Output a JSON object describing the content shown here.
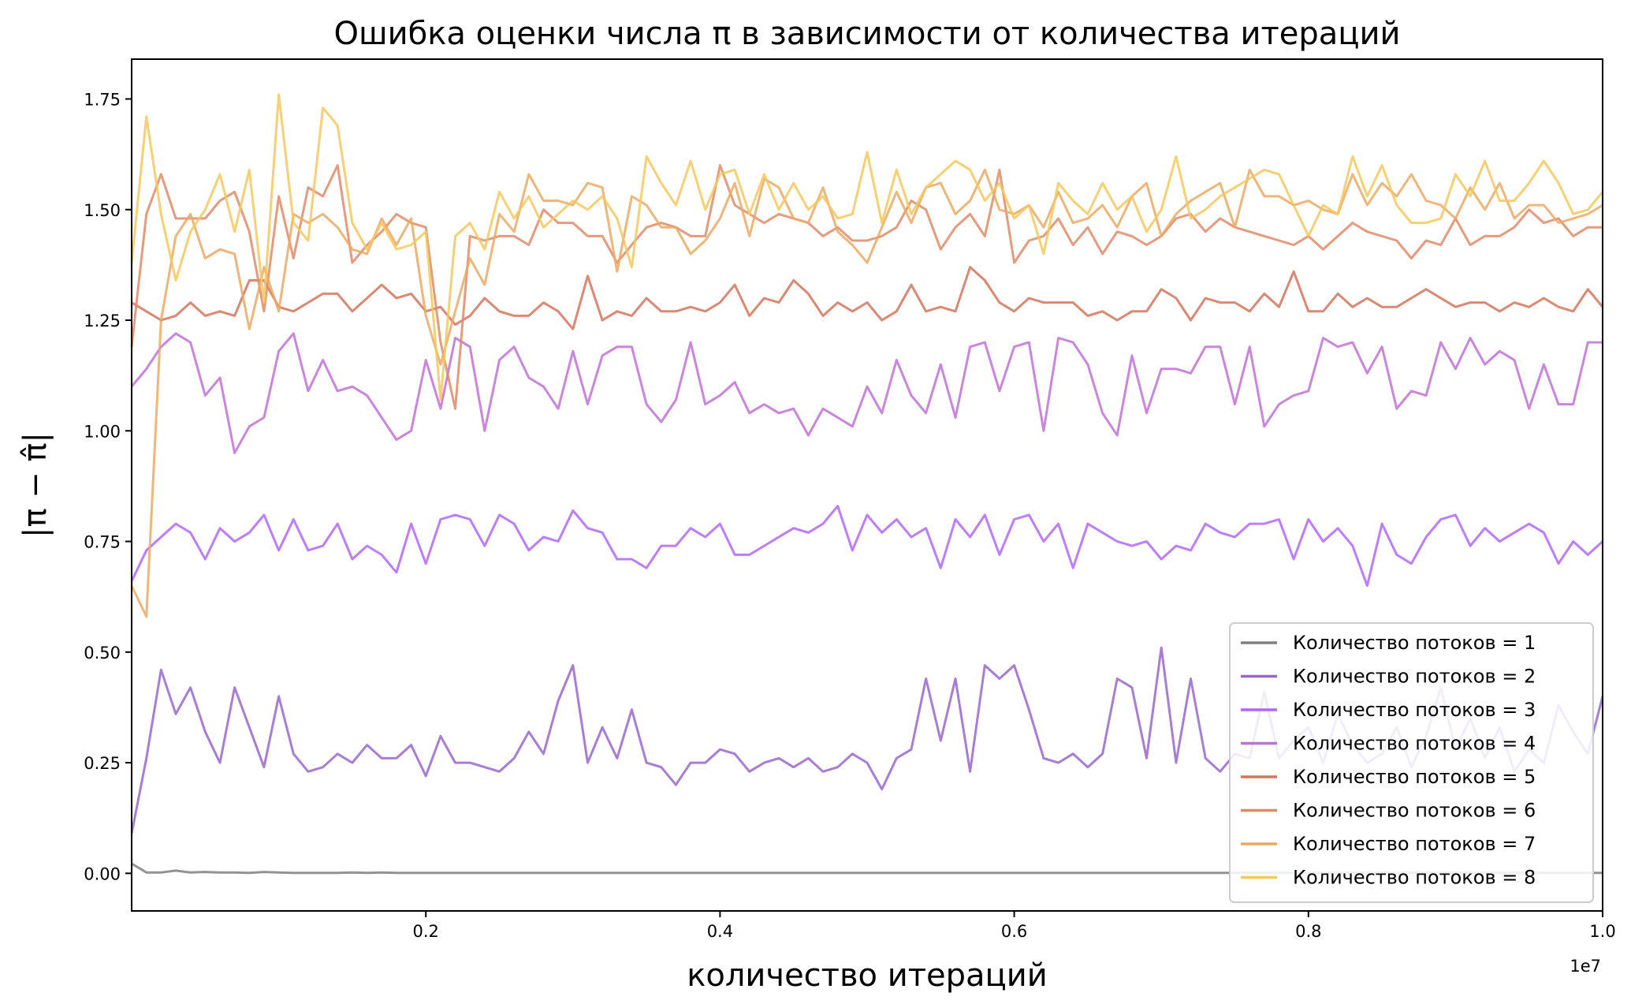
{
  "chart_data": {
    "type": "line",
    "title": "Ошибка оценки числа π в зависимости от количества итераций",
    "xlabel": "количество итераций",
    "ylabel": "|π − π̂|",
    "x_offset_label": "1e7",
    "x_tick_labels": [
      "0.2",
      "0.4",
      "0.6",
      "0.8",
      "1.0"
    ],
    "x_ticks": [
      0.2,
      0.4,
      0.6,
      0.8,
      1.0
    ],
    "y_tick_labels": [
      "0.00",
      "0.25",
      "0.50",
      "0.75",
      "1.00",
      "1.25",
      "1.50",
      "1.75"
    ],
    "y_ticks": [
      0,
      0.25,
      0.5,
      0.75,
      1.0,
      1.25,
      1.5,
      1.75
    ],
    "xlim": [
      0,
      1.0
    ],
    "ylim": [
      -0.085,
      1.84
    ],
    "grid": false,
    "legend_placement": "lower-right",
    "x": [
      0.0,
      0.01,
      0.02,
      0.03,
      0.04,
      0.05,
      0.06,
      0.07,
      0.08,
      0.09,
      0.1,
      0.11,
      0.12,
      0.13,
      0.14,
      0.15,
      0.16,
      0.17,
      0.18,
      0.19,
      0.2,
      0.21,
      0.22,
      0.23,
      0.24,
      0.25,
      0.26,
      0.27,
      0.28,
      0.29,
      0.3,
      0.31,
      0.32,
      0.33,
      0.34,
      0.35,
      0.36,
      0.37,
      0.38,
      0.39,
      0.4,
      0.41,
      0.42,
      0.43,
      0.44,
      0.45,
      0.46,
      0.47,
      0.48,
      0.49,
      0.5,
      0.51,
      0.52,
      0.53,
      0.54,
      0.55,
      0.56,
      0.57,
      0.58,
      0.59,
      0.6,
      0.61,
      0.62,
      0.63,
      0.64,
      0.65,
      0.66,
      0.67,
      0.68,
      0.69,
      0.7,
      0.71,
      0.72,
      0.73,
      0.74,
      0.75,
      0.76,
      0.77,
      0.78,
      0.79,
      0.8,
      0.81,
      0.82,
      0.83,
      0.84,
      0.85,
      0.86,
      0.87,
      0.88,
      0.89,
      0.9,
      0.91,
      0.92,
      0.93,
      0.94,
      0.95,
      0.96,
      0.97,
      0.98,
      0.99,
      1.0
    ],
    "series": [
      {
        "name": "Количество потоков = 1",
        "color": "#808080",
        "values": [
          0.022,
          0.002,
          0.002,
          0.006,
          0.002,
          0.003,
          0.002,
          0.002,
          0.001,
          0.003,
          0.002,
          0.001,
          0.001,
          0.001,
          0.001,
          0.002,
          0.001,
          0.002,
          0.001,
          0.001,
          0.001,
          0.001,
          0.001,
          0.001,
          0.001,
          0.001,
          0.001,
          0.001,
          0.001,
          0.001,
          0.001,
          0.001,
          0.001,
          0.001,
          0.001,
          0.001,
          0.001,
          0.001,
          0.001,
          0.001,
          0.001,
          0.001,
          0.001,
          0.001,
          0.001,
          0.001,
          0.001,
          0.001,
          0.001,
          0.001,
          0.001,
          0.001,
          0.001,
          0.001,
          0.001,
          0.001,
          0.001,
          0.001,
          0.001,
          0.001,
          0.001,
          0.001,
          0.001,
          0.001,
          0.001,
          0.001,
          0.001,
          0.001,
          0.001,
          0.001,
          0.001,
          0.001,
          0.001,
          0.001,
          0.001,
          0.001,
          0.001,
          0.001,
          0.001,
          0.001,
          0.001,
          0.001,
          0.001,
          0.001,
          0.001,
          0.001,
          0.001,
          0.001,
          0.001,
          0.001,
          0.001,
          0.001,
          0.001,
          0.001,
          0.001,
          0.001,
          0.001,
          0.001,
          0.001,
          0.001,
          0.001
        ]
      },
      {
        "name": "Количество потоков = 2",
        "color": "#9966cc",
        "values": [
          0.09,
          0.26,
          0.46,
          0.36,
          0.42,
          0.32,
          0.25,
          0.42,
          0.33,
          0.24,
          0.4,
          0.27,
          0.23,
          0.24,
          0.27,
          0.25,
          0.29,
          0.26,
          0.26,
          0.29,
          0.22,
          0.31,
          0.25,
          0.25,
          0.24,
          0.23,
          0.26,
          0.32,
          0.27,
          0.39,
          0.47,
          0.25,
          0.33,
          0.26,
          0.37,
          0.25,
          0.24,
          0.2,
          0.25,
          0.25,
          0.28,
          0.27,
          0.23,
          0.25,
          0.26,
          0.24,
          0.26,
          0.23,
          0.24,
          0.27,
          0.25,
          0.19,
          0.26,
          0.28,
          0.44,
          0.3,
          0.44,
          0.23,
          0.47,
          0.44,
          0.47,
          0.37,
          0.26,
          0.25,
          0.27,
          0.24,
          0.27,
          0.44,
          0.42,
          0.26,
          0.51,
          0.25,
          0.44,
          0.26,
          0.23,
          0.27,
          0.26,
          0.41,
          0.26,
          0.3,
          0.33,
          0.25,
          0.36,
          0.29,
          0.25,
          0.27,
          0.33,
          0.24,
          0.31,
          0.42,
          0.28,
          0.35,
          0.26,
          0.33,
          0.23,
          0.28,
          0.25,
          0.38,
          0.32,
          0.27,
          0.4
        ]
      },
      {
        "name": "Количество потоков = 3",
        "color": "#b266ff",
        "values": [
          0.66,
          0.73,
          0.76,
          0.79,
          0.77,
          0.71,
          0.78,
          0.75,
          0.77,
          0.81,
          0.73,
          0.8,
          0.73,
          0.74,
          0.79,
          0.71,
          0.74,
          0.72,
          0.68,
          0.79,
          0.7,
          0.8,
          0.81,
          0.8,
          0.74,
          0.81,
          0.79,
          0.73,
          0.76,
          0.75,
          0.82,
          0.78,
          0.77,
          0.71,
          0.71,
          0.69,
          0.74,
          0.74,
          0.78,
          0.76,
          0.79,
          0.72,
          0.72,
          0.74,
          0.76,
          0.78,
          0.77,
          0.79,
          0.83,
          0.73,
          0.81,
          0.77,
          0.8,
          0.76,
          0.78,
          0.69,
          0.8,
          0.76,
          0.81,
          0.72,
          0.8,
          0.81,
          0.75,
          0.79,
          0.69,
          0.79,
          0.77,
          0.75,
          0.74,
          0.75,
          0.71,
          0.74,
          0.73,
          0.79,
          0.77,
          0.76,
          0.79,
          0.79,
          0.8,
          0.71,
          0.8,
          0.75,
          0.78,
          0.74,
          0.65,
          0.79,
          0.72,
          0.7,
          0.76,
          0.8,
          0.81,
          0.74,
          0.78,
          0.75,
          0.77,
          0.79,
          0.77,
          0.7,
          0.75,
          0.72,
          0.75
        ]
      },
      {
        "name": "Количество потоков = 4",
        "color": "#c071d6",
        "values": [
          1.1,
          1.14,
          1.19,
          1.22,
          1.2,
          1.08,
          1.12,
          0.95,
          1.01,
          1.03,
          1.18,
          1.22,
          1.09,
          1.16,
          1.09,
          1.1,
          1.08,
          1.03,
          0.98,
          1.0,
          1.16,
          1.05,
          1.21,
          1.19,
          1.0,
          1.16,
          1.19,
          1.12,
          1.1,
          1.05,
          1.18,
          1.06,
          1.17,
          1.19,
          1.19,
          1.06,
          1.02,
          1.07,
          1.2,
          1.06,
          1.08,
          1.11,
          1.04,
          1.06,
          1.04,
          1.05,
          0.99,
          1.05,
          1.03,
          1.01,
          1.1,
          1.04,
          1.16,
          1.08,
          1.04,
          1.15,
          1.03,
          1.19,
          1.2,
          1.09,
          1.19,
          1.2,
          1.0,
          1.21,
          1.2,
          1.15,
          1.04,
          0.99,
          1.17,
          1.04,
          1.14,
          1.14,
          1.13,
          1.19,
          1.19,
          1.06,
          1.19,
          1.01,
          1.06,
          1.08,
          1.09,
          1.21,
          1.19,
          1.2,
          1.13,
          1.19,
          1.05,
          1.09,
          1.08,
          1.2,
          1.14,
          1.21,
          1.15,
          1.18,
          1.16,
          1.05,
          1.15,
          1.06,
          1.06,
          1.2,
          1.2
        ]
      },
      {
        "name": "Количество потоков = 5",
        "color": "#d4745a",
        "values": [
          1.29,
          1.27,
          1.25,
          1.26,
          1.29,
          1.26,
          1.27,
          1.26,
          1.34,
          1.34,
          1.28,
          1.27,
          1.29,
          1.31,
          1.31,
          1.27,
          1.3,
          1.33,
          1.3,
          1.31,
          1.27,
          1.28,
          1.24,
          1.26,
          1.3,
          1.27,
          1.26,
          1.26,
          1.29,
          1.27,
          1.23,
          1.35,
          1.25,
          1.27,
          1.26,
          1.3,
          1.27,
          1.27,
          1.28,
          1.27,
          1.29,
          1.33,
          1.26,
          1.3,
          1.29,
          1.34,
          1.31,
          1.26,
          1.29,
          1.27,
          1.29,
          1.25,
          1.27,
          1.33,
          1.27,
          1.28,
          1.27,
          1.37,
          1.34,
          1.29,
          1.27,
          1.3,
          1.29,
          1.29,
          1.29,
          1.26,
          1.27,
          1.25,
          1.27,
          1.27,
          1.32,
          1.3,
          1.25,
          1.3,
          1.29,
          1.29,
          1.27,
          1.31,
          1.28,
          1.36,
          1.27,
          1.27,
          1.31,
          1.28,
          1.3,
          1.28,
          1.28,
          1.3,
          1.32,
          1.3,
          1.28,
          1.29,
          1.29,
          1.27,
          1.29,
          1.28,
          1.3,
          1.28,
          1.27,
          1.32,
          1.28
        ]
      },
      {
        "name": "Количество потоков = 6",
        "color": "#e08a66",
        "values": [
          1.19,
          1.49,
          1.58,
          1.48,
          1.48,
          1.48,
          1.52,
          1.54,
          1.45,
          1.27,
          1.53,
          1.39,
          1.55,
          1.53,
          1.6,
          1.38,
          1.42,
          1.45,
          1.49,
          1.47,
          1.46,
          1.2,
          1.05,
          1.44,
          1.43,
          1.44,
          1.44,
          1.42,
          1.5,
          1.47,
          1.47,
          1.44,
          1.44,
          1.38,
          1.42,
          1.46,
          1.47,
          1.46,
          1.44,
          1.44,
          1.6,
          1.51,
          1.49,
          1.47,
          1.49,
          1.48,
          1.47,
          1.44,
          1.46,
          1.43,
          1.43,
          1.44,
          1.46,
          1.52,
          1.5,
          1.41,
          1.46,
          1.49,
          1.44,
          1.59,
          1.38,
          1.43,
          1.44,
          1.48,
          1.42,
          1.46,
          1.4,
          1.45,
          1.44,
          1.42,
          1.44,
          1.48,
          1.49,
          1.45,
          1.48,
          1.46,
          1.45,
          1.44,
          1.43,
          1.42,
          1.44,
          1.41,
          1.44,
          1.47,
          1.45,
          1.44,
          1.43,
          1.39,
          1.43,
          1.42,
          1.48,
          1.42,
          1.44,
          1.44,
          1.46,
          1.5,
          1.47,
          1.48,
          1.44,
          1.46,
          1.46
        ]
      },
      {
        "name": "Количество потоков = 7",
        "color": "#eba963",
        "values": [
          0.65,
          0.58,
          1.25,
          1.44,
          1.49,
          1.39,
          1.41,
          1.4,
          1.23,
          1.37,
          1.27,
          1.49,
          1.47,
          1.49,
          1.46,
          1.41,
          1.4,
          1.48,
          1.42,
          1.48,
          1.26,
          1.15,
          1.27,
          1.39,
          1.33,
          1.49,
          1.45,
          1.58,
          1.52,
          1.52,
          1.51,
          1.56,
          1.55,
          1.36,
          1.53,
          1.51,
          1.46,
          1.46,
          1.4,
          1.43,
          1.48,
          1.56,
          1.44,
          1.57,
          1.55,
          1.48,
          1.47,
          1.55,
          1.45,
          1.42,
          1.38,
          1.46,
          1.54,
          1.47,
          1.55,
          1.56,
          1.49,
          1.52,
          1.59,
          1.5,
          1.49,
          1.51,
          1.46,
          1.54,
          1.47,
          1.48,
          1.51,
          1.46,
          1.53,
          1.56,
          1.44,
          1.49,
          1.52,
          1.54,
          1.56,
          1.46,
          1.59,
          1.53,
          1.53,
          1.51,
          1.52,
          1.5,
          1.49,
          1.58,
          1.51,
          1.56,
          1.53,
          1.58,
          1.52,
          1.51,
          1.48,
          1.55,
          1.5,
          1.56,
          1.48,
          1.51,
          1.51,
          1.47,
          1.48,
          1.49,
          1.51
        ]
      },
      {
        "name": "Количество потоков = 8",
        "color": "#f5c85c",
        "values": [
          1.38,
          1.71,
          1.49,
          1.34,
          1.45,
          1.5,
          1.58,
          1.45,
          1.59,
          1.29,
          1.76,
          1.47,
          1.43,
          1.73,
          1.69,
          1.47,
          1.41,
          1.47,
          1.41,
          1.42,
          1.45,
          1.07,
          1.44,
          1.47,
          1.41,
          1.54,
          1.48,
          1.53,
          1.46,
          1.49,
          1.52,
          1.5,
          1.53,
          1.48,
          1.37,
          1.62,
          1.56,
          1.51,
          1.61,
          1.5,
          1.58,
          1.59,
          1.49,
          1.58,
          1.5,
          1.56,
          1.5,
          1.53,
          1.48,
          1.49,
          1.63,
          1.47,
          1.59,
          1.49,
          1.55,
          1.58,
          1.61,
          1.59,
          1.52,
          1.56,
          1.48,
          1.51,
          1.4,
          1.56,
          1.52,
          1.49,
          1.56,
          1.5,
          1.53,
          1.45,
          1.5,
          1.62,
          1.48,
          1.5,
          1.53,
          1.55,
          1.57,
          1.59,
          1.58,
          1.51,
          1.44,
          1.51,
          1.49,
          1.62,
          1.53,
          1.6,
          1.51,
          1.47,
          1.47,
          1.48,
          1.58,
          1.53,
          1.61,
          1.52,
          1.52,
          1.56,
          1.61,
          1.56,
          1.49,
          1.5,
          1.54
        ]
      }
    ]
  }
}
